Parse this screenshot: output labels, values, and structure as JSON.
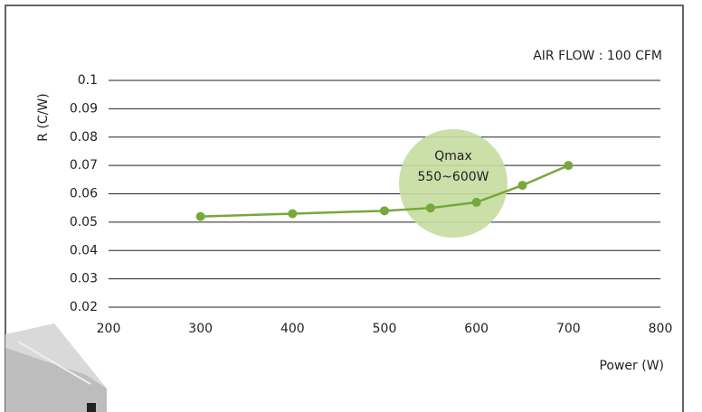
{
  "chart_data": {
    "type": "line",
    "title": "AIR FLOW : 100 CFM",
    "x_label": "Power (W)",
    "y_label": "R (C/W)",
    "annotation": [
      "Qmax",
      "550~600W"
    ],
    "x": [
      300,
      400,
      500,
      550,
      600,
      650,
      700
    ],
    "series": [
      {
        "name": "R",
        "color": "#76a83c",
        "values": [
          0.052,
          0.053,
          0.054,
          0.055,
          0.057,
          0.063,
          0.07
        ]
      }
    ],
    "xlim": [
      200,
      800
    ],
    "xticks": [
      200,
      300,
      400,
      500,
      600,
      700,
      800
    ],
    "ylim": [
      0.02,
      0.1
    ],
    "yticks": [
      0.02,
      0.03,
      0.04,
      0.05,
      0.06,
      0.07,
      0.08,
      0.09,
      0.1
    ],
    "grid": true
  }
}
